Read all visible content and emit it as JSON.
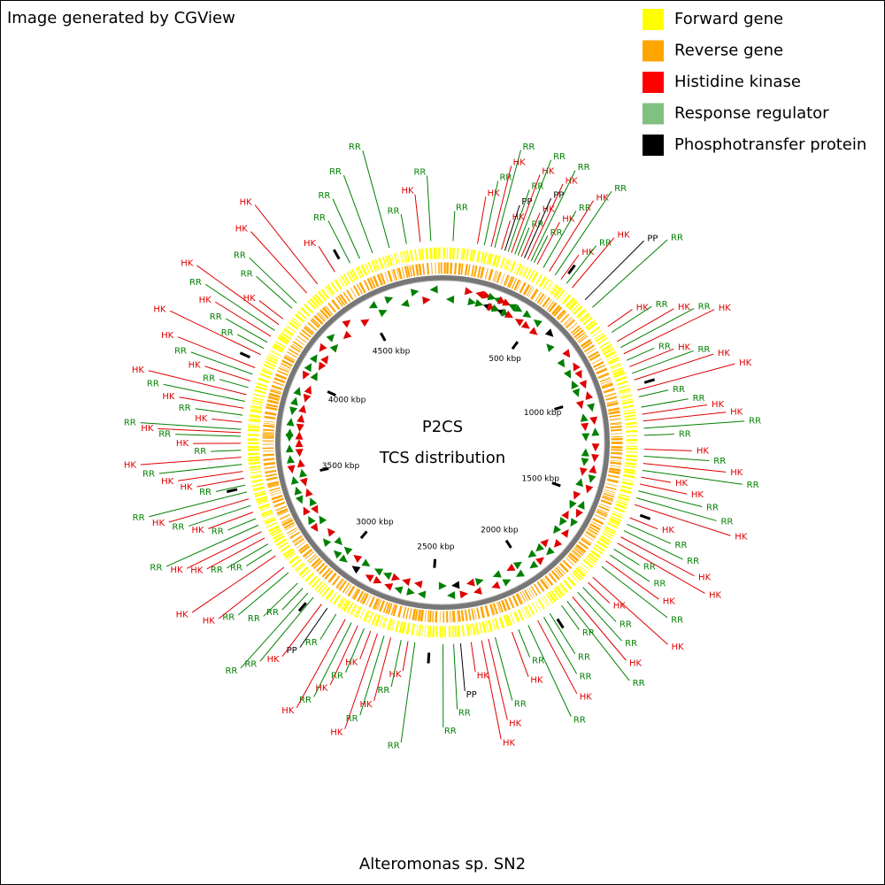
{
  "header": {
    "title": "Image generated by CGView"
  },
  "legend": [
    {
      "name": "Forward gene",
      "color": "#ffff00"
    },
    {
      "name": "Reverse gene",
      "color": "#ffa500"
    },
    {
      "name": "Histidine kinase",
      "color": "#ff0000"
    },
    {
      "name": "Response regulator",
      "color": "#80c080"
    },
    {
      "name": "Phosphotransfer protein",
      "color": "#000000"
    }
  ],
  "center": {
    "title": "P2CS",
    "subtitle": "TCS distribution"
  },
  "footer": {
    "organism": "Alteromonas sp. SN2"
  },
  "map": {
    "axis_range_kbp": [
      0,
      4900
    ],
    "ticks": [
      {
        "value": 500,
        "label": "500 kbp"
      },
      {
        "value": 1000,
        "label": "1000 kbp"
      },
      {
        "value": 1500,
        "label": "1500 kbp"
      },
      {
        "value": 2000,
        "label": "2000 kbp"
      },
      {
        "value": 2500,
        "label": "2500 kbp"
      },
      {
        "value": 3000,
        "label": "3000 kbp"
      },
      {
        "value": 3500,
        "label": "3500 kbp"
      },
      {
        "value": 4000,
        "label": "4000 kbp"
      },
      {
        "value": 4500,
        "label": "4500 kbp"
      }
    ],
    "feature_colors": {
      "HK": "#e00000",
      "RR": "#008000",
      "PP": "#000000"
    },
    "feature_labels": [
      "RR",
      "HK",
      "RR",
      "HK",
      "RR",
      "HK",
      "PP",
      "RR",
      "HK",
      "RR",
      "RR",
      "HK",
      "PP",
      "HK",
      "RR",
      "RR",
      "HK",
      "RR",
      "HK",
      "RR",
      "HK",
      "RR",
      "HK",
      "PP",
      "RR",
      "HK",
      "RR",
      "HK",
      "RR",
      "HK",
      "RR",
      "HK",
      "RR",
      "HK",
      "HK",
      "RR",
      "RR",
      "HK",
      "HK",
      "RR",
      "RR",
      "HK",
      "RR",
      "HK",
      "RR",
      "HK",
      "HK",
      "RR",
      "RR",
      "HK",
      "HK",
      "RR",
      "RR",
      "HK",
      "HK",
      "RR",
      "RR",
      "HK",
      "RR",
      "HK",
      "HK",
      "RR",
      "RR",
      "HK",
      "RR",
      "RR",
      "RR",
      "RR",
      "HK",
      "RR",
      "RR",
      "HK",
      "RR",
      "HK",
      "HK",
      "HK",
      "PP",
      "RR",
      "RR",
      "RR",
      "HK",
      "RR",
      "HK",
      "RR",
      "HK",
      "HK",
      "RR",
      "HK",
      "RR",
      "HK",
      "RR",
      "PP",
      "HK",
      "RR",
      "RR",
      "RR",
      "RR",
      "RR",
      "HK",
      "HK",
      "RR",
      "RR",
      "HK",
      "HK",
      "RR",
      "RR",
      "HK",
      "RR",
      "HK",
      "RR",
      "RR",
      "HK",
      "HK",
      "RR",
      "HK",
      "RR",
      "HK",
      "RR",
      "HK",
      "RR",
      "HK",
      "RR",
      "HK",
      "RR",
      "HK",
      "RR",
      "HK",
      "RR",
      "HK",
      "HK",
      "RR",
      "RR",
      "HK",
      "RR",
      "HK",
      "HK",
      "RR",
      "RR",
      "HK",
      "HK",
      "HK",
      "RR",
      "RR",
      "RR",
      "RR",
      "RR",
      "HK",
      "RR"
    ],
    "feature_kbp": [
      41,
      136,
      163,
      190,
      204,
      231,
      245,
      258,
      272,
      286,
      299,
      313,
      326,
      340,
      354,
      367,
      381,
      408,
      435,
      462,
      490,
      517,
      544,
      612,
      653,
      748,
      775,
      816,
      843,
      870,
      898,
      925,
      952,
      979,
      1020,
      1047,
      1088,
      1115,
      1142,
      1170,
      1197,
      1251,
      1278,
      1306,
      1333,
      1360,
      1387,
      1414,
      1442,
      1469,
      1523,
      1550,
      1578,
      1605,
      1632,
      1659,
      1686,
      1714,
      1741,
      1795,
      1822,
      1850,
      1877,
      1904,
      1931,
      1958,
      2013,
      2040,
      2067,
      2108,
      2149,
      2176,
      2244,
      2271,
      2298,
      2339,
      2380,
      2407,
      2448,
      2557,
      2584,
      2611,
      2652,
      2679,
      2706,
      2734,
      2761,
      2788,
      2815,
      2842,
      2883,
      2924,
      2951,
      2992,
      3019,
      3046,
      3074,
      3128,
      3155,
      3210,
      3237,
      3264,
      3291,
      3318,
      3346,
      3373,
      3400,
      3427,
      3454,
      3482,
      3509,
      3536,
      3563,
      3590,
      3618,
      3645,
      3672,
      3699,
      3713,
      3726,
      3754,
      3781,
      3808,
      3835,
      3862,
      3890,
      3917,
      3944,
      3971,
      4026,
      4053,
      4080,
      4107,
      4134,
      4162,
      4189,
      4243,
      4270,
      4325,
      4379,
      4461,
      4529,
      4570,
      4624,
      4692,
      4760,
      4814,
      4855
    ]
  }
}
